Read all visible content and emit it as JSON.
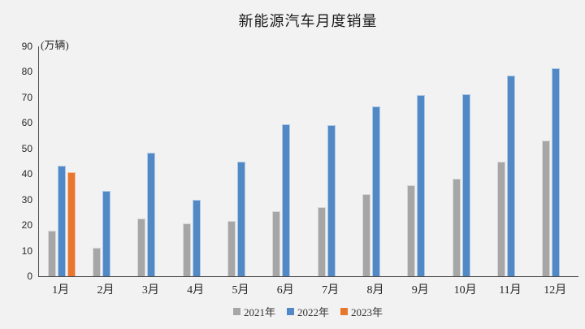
{
  "chart_data": {
    "type": "bar",
    "title": "新能源汽车月度销量",
    "unit_label": "(万辆)",
    "categories": [
      "1月",
      "2月",
      "3月",
      "4月",
      "5月",
      "6月",
      "7月",
      "8月",
      "9月",
      "10月",
      "11月",
      "12月"
    ],
    "series": [
      {
        "name": "2021年",
        "color": "#a6a6a6",
        "values": [
          17.9,
          11.0,
          22.6,
          20.6,
          21.7,
          25.6,
          27.1,
          32.1,
          35.7,
          38.3,
          45.0,
          53.1
        ]
      },
      {
        "name": "2022年",
        "color": "#5089c6",
        "values": [
          43.1,
          33.4,
          48.4,
          29.9,
          44.7,
          59.6,
          59.3,
          66.6,
          70.8,
          71.4,
          78.6,
          81.4
        ]
      },
      {
        "name": "2023年",
        "color": "#e8762c",
        "values": [
          40.8,
          null,
          null,
          null,
          null,
          null,
          null,
          null,
          null,
          null,
          null,
          null
        ]
      }
    ],
    "ylim": [
      0,
      90
    ],
    "y_ticks": [
      0,
      10,
      20,
      30,
      40,
      50,
      60,
      70,
      80,
      90
    ],
    "xlabel": "",
    "ylabel": "(万辆)",
    "legend_position": "bottom",
    "grid": false,
    "background_color": "#f2f2f2",
    "axis_color": "#4d4d4d"
  }
}
